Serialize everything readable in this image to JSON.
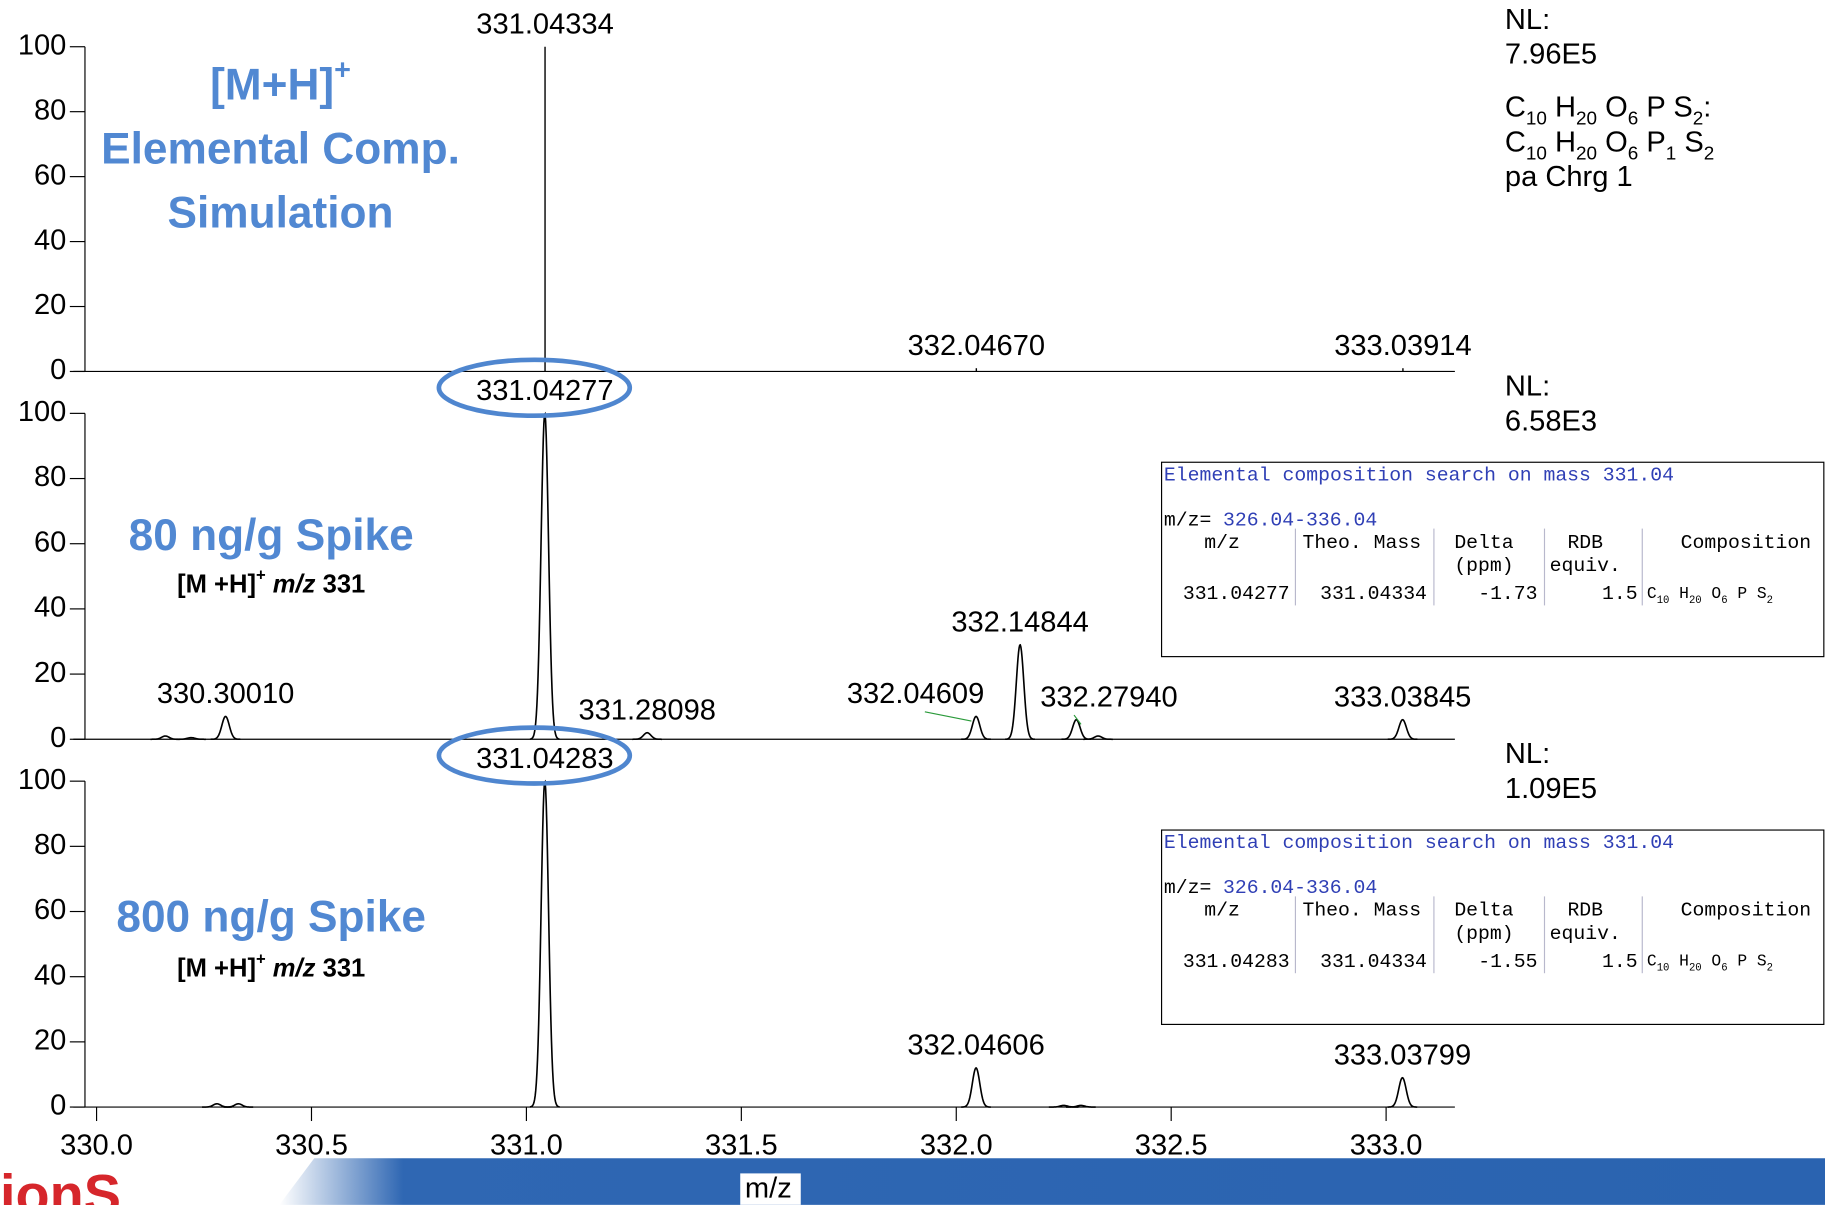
{
  "chart_data": [
    {
      "type": "stem",
      "color": "#000000",
      "xlim": [
        329.973,
        333.16
      ],
      "ylim": [
        0,
        100
      ],
      "yticks": [
        0,
        20,
        40,
        60,
        80,
        100
      ],
      "x": [
        331.04334,
        332.0467,
        333.03914
      ],
      "values": [
        100,
        1,
        1
      ],
      "x_labels": [
        "331.04334",
        "332.04670",
        "333.03914"
      ],
      "nl": {
        "label": "NL:",
        "value": "7.96E5"
      },
      "info_lines": [
        [
          {
            "text": "C"
          },
          {
            "text": "10",
            "style": "sub"
          },
          {
            "text": " H"
          },
          {
            "text": "20",
            "style": "sub"
          },
          {
            "text": " O"
          },
          {
            "text": "6",
            "style": "sub"
          },
          {
            "text": " P S"
          },
          {
            "text": "2",
            "style": "sub"
          },
          {
            "text": ":"
          }
        ],
        [
          {
            "text": "C"
          },
          {
            "text": "10",
            "style": "sub"
          },
          {
            "text": " H"
          },
          {
            "text": "20",
            "style": "sub"
          },
          {
            "text": " O"
          },
          {
            "text": "6",
            "style": "sub"
          },
          {
            "text": " P"
          },
          {
            "text": "1",
            "style": "sub"
          },
          {
            "text": " S"
          },
          {
            "text": "2",
            "style": "sub"
          }
        ],
        [
          {
            "text": "pa Chrg 1"
          }
        ]
      ],
      "annotation": [
        [
          {
            "text": "[M+H]"
          },
          {
            "text": "+",
            "style": "sup"
          }
        ],
        [
          {
            "text": "Elemental Comp."
          }
        ],
        [
          {
            "text": "Simulation"
          }
        ]
      ]
    },
    {
      "type": "profile",
      "color": "#000000",
      "xlim": [
        329.973,
        333.16
      ],
      "ylim": [
        0,
        100
      ],
      "yticks": [
        0,
        20,
        40,
        60,
        80,
        100
      ],
      "x": [
        330.16,
        330.22,
        330.3001,
        331.04277,
        331.28098,
        332.04609,
        332.14844,
        332.2794,
        332.33,
        333.03845
      ],
      "values": [
        1,
        0.5,
        7,
        100,
        2,
        7,
        29,
        6,
        1,
        6
      ],
      "x_labels": [
        null,
        null,
        "330.30010",
        "331.04277",
        "331.28098",
        "332.04609",
        "332.14844",
        "332.27940",
        null,
        "333.03845"
      ],
      "nl": {
        "label": "NL:",
        "value": "6.58E3"
      },
      "annotation": [
        [
          {
            "text": "80 ng/g Spike"
          }
        ],
        [
          {
            "text": "[M +H]"
          },
          {
            "text": "+",
            "style": "sup"
          },
          {
            "text": " m/z",
            "style": "italic"
          },
          {
            "text": " 331"
          }
        ]
      ]
    },
    {
      "type": "profile",
      "color": "#000000",
      "xlim": [
        329.973,
        333.16
      ],
      "ylim": [
        0,
        100
      ],
      "yticks": [
        0,
        20,
        40,
        60,
        80,
        100
      ],
      "xticks": [
        {
          "value": 330,
          "label": "330.0"
        },
        330.5,
        {
          "value": 331,
          "label": "331.0"
        },
        331.5,
        {
          "value": 332,
          "label": "332.0"
        },
        332.5,
        {
          "value": 333,
          "label": "333.0"
        }
      ],
      "xlabel": "m/z",
      "x": [
        330.28,
        330.33,
        331.04283,
        332.04606,
        332.25,
        332.29,
        333.03799
      ],
      "values": [
        1,
        1,
        100,
        12,
        0.5,
        0.5,
        9
      ],
      "x_labels": [
        null,
        null,
        "331.04283",
        "332.04606",
        null,
        null,
        "333.03799"
      ],
      "nl": {
        "label": "NL:",
        "value": "1.09E5"
      },
      "annotation": [
        [
          {
            "text": "800 ng/g Spike"
          }
        ],
        [
          {
            "text": "[M +H]"
          },
          {
            "text": "+",
            "style": "sup"
          },
          {
            "text": " m/z",
            "style": "italic"
          },
          {
            "text": " 331"
          }
        ]
      ]
    }
  ],
  "tables": [
    {
      "title": "Elemental composition search on mass 331.04",
      "range_label": "m/z=",
      "range": "326.04-336.04",
      "headers": [
        [
          "m/z"
        ],
        [
          "Theo. Mass"
        ],
        [
          "Delta",
          "(ppm)"
        ],
        [
          "RDB",
          "equiv."
        ],
        [
          "Composition"
        ]
      ],
      "rows": [
        [
          331.04277,
          331.04334,
          -1.73,
          1.5,
          [
            {
              "text": "C"
            },
            {
              "text": "10",
              "style": "sub"
            },
            {
              "text": " H"
            },
            {
              "text": "20",
              "style": "sub"
            },
            {
              "text": " O"
            },
            {
              "text": "6",
              "style": "sub"
            },
            {
              "text": " P S"
            },
            {
              "text": "2",
              "style": "sub"
            }
          ]
        ]
      ]
    },
    {
      "title": "Elemental composition search on mass 331.04",
      "range_label": "m/z=",
      "range": "326.04-336.04",
      "headers": [
        [
          "m/z"
        ],
        [
          "Theo. Mass"
        ],
        [
          "Delta",
          "(ppm)"
        ],
        [
          "RDB",
          "equiv."
        ],
        [
          "Composition"
        ]
      ],
      "rows": [
        [
          331.04283,
          331.04334,
          -1.55,
          1.5,
          [
            {
              "text": "C"
            },
            {
              "text": "10",
              "style": "sub"
            },
            {
              "text": " H"
            },
            {
              "text": "20",
              "style": "sub"
            },
            {
              "text": " O"
            },
            {
              "text": "6",
              "style": "sub"
            },
            {
              "text": " P S"
            },
            {
              "text": "2",
              "style": "sub"
            }
          ]
        ]
      ]
    }
  ],
  "footer": {
    "logo": "ionS"
  }
}
